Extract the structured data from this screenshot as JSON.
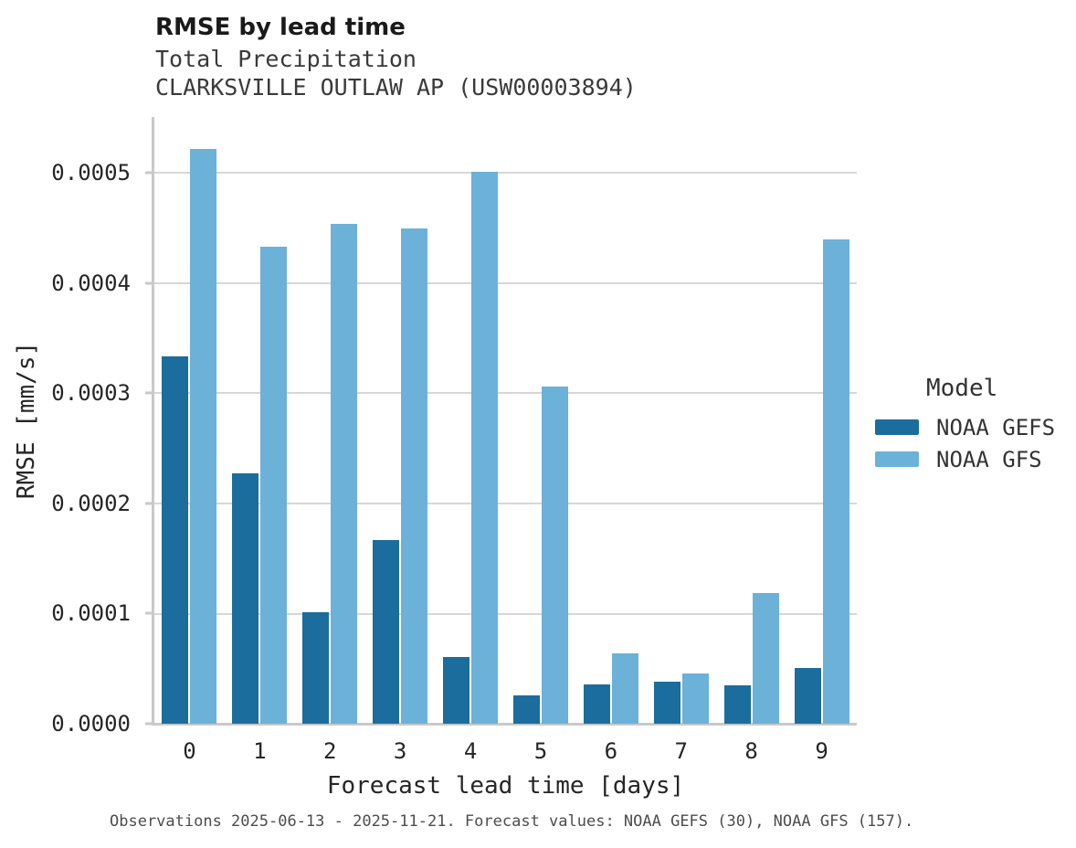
{
  "header": {
    "title": "RMSE by lead time",
    "subtitle_variable": "Total Precipitation",
    "subtitle_station": "CLARKSVILLE OUTLAW AP (USW00003894)"
  },
  "chart_data": {
    "type": "bar",
    "title": "RMSE by lead time",
    "subtitle": "Total Precipitation — CLARKSVILLE OUTLAW AP (USW00003894)",
    "categories": [
      "0",
      "1",
      "2",
      "3",
      "4",
      "5",
      "6",
      "7",
      "8",
      "9"
    ],
    "series": [
      {
        "name": "NOAA GEFS",
        "color": "#1A6D9C",
        "values": [
          0.000334,
          0.000227,
          0.000101,
          0.000167,
          6.1e-05,
          2.6e-05,
          3.6e-05,
          3.8e-05,
          3.5e-05,
          5.1e-05
        ]
      },
      {
        "name": "NOAA GFS",
        "color": "#6CB1D8",
        "values": [
          0.000522,
          0.000433,
          0.000454,
          0.00045,
          0.000501,
          0.000306,
          6.4e-05,
          4.6e-05,
          0.000119,
          0.00044
        ]
      }
    ],
    "xlabel": "Forecast lead time [days]",
    "ylabel": "RMSE [mm/s]",
    "ylim": [
      0,
      0.000551
    ],
    "yticks": [
      0,
      0.0001,
      0.0002,
      0.0003,
      0.0004,
      0.0005
    ],
    "ytick_labels": [
      "0.0000",
      "0.0001",
      "0.0002",
      "0.0003",
      "0.0004",
      "0.0005"
    ],
    "grid": true,
    "legend_title": "Model",
    "legend_position": "right"
  },
  "footer": {
    "caption": "Observations 2025-06-13 - 2025-11-21. Forecast values: NOAA GEFS (30), NOAA GFS (157)."
  }
}
